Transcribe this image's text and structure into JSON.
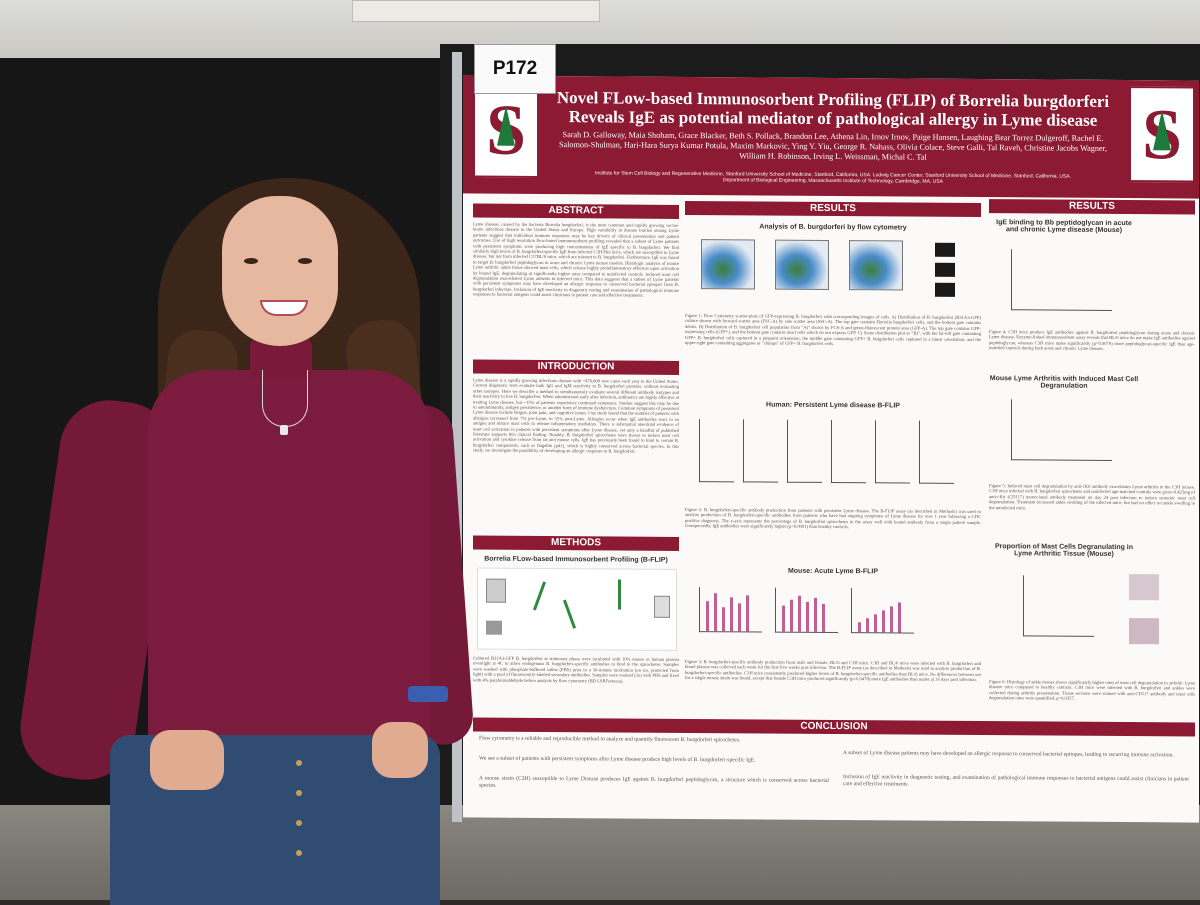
{
  "board_tag": "P172",
  "poster": {
    "title_line1": "Novel FLow-based Immunosorbent Profiling (FLIP) of Borrelia burgdorferi",
    "title_line2": "Reveals IgE as potential mediator of pathological allergy in Lyme disease",
    "authors": "Sarah D. Galloway, Maia Shoham, Grace Blacker, Beth S. Pollack, Brandon Lee, Athena Lin, Irnov Irnov, Paige Hansen, Laughing Bear Torrez Dulgeroff, Rachel E. Salomon-Shulman, Hari-Hara Surya Kumar Potula, Maxim Markovic, Ying Y. Yiu, George R. Nahass, Olivia Colace, Steve Galli, Tal Raveh, Christine Jacobs Wagner, William H. Robinson, Irving L. Weissman, Michal C. Tal",
    "affiliations": "Institute for Stem Cell Biology and Regenerative Medicine, Stanford University School of Medicine, Stanford, California, USA. Ludwig Cancer Center, Stanford University School of Medicine, Stanford, California, USA. Department of Biological Engineering, Massachusetts Institute of Technology, Cambridge, MA, USA",
    "sections": {
      "abstract": "ABSTRACT",
      "introduction": "INTRODUCTION",
      "methods": "METHODS",
      "results_mid": "RESULTS",
      "results_right": "RESULTS",
      "conclusion": "CONCLUSION"
    },
    "figures": {
      "flow": "Analysis of B. burgdorferi by flow cytometry",
      "human": "Human: Persistent Lyme disease B-FLIP",
      "mouse": "Mouse: Acute Lyme B-FLIP",
      "ige": "IgE binding to Bb peptidoglycan in acute and chronic Lyme disease (Mouse)",
      "arthritis": "Mouse Lyme Arthritis with Induced Mast Cell Degranulation",
      "mast": "Proportion of Mast Cells Degranulating in Lyme Arthritic Tissue (Mouse)",
      "methods": "Borrelia FLow-based Immunosorbent Profiling (B-FLIP)"
    },
    "conclusion_points": [
      "Flow cytometry is a reliable and reproducible method to analyze and quantify fluorescent B. burgdorferi spirochetes.",
      "We see a subset of patients with persistent symptoms after Lyme disease produce high levels of B. burgdorferi-specific IgE.",
      "A mouse strain (C3H) susceptible to Lyme Disease produces IgE against B. burgdorferi peptidoglycan, a structure which is conserved across bacterial species.",
      "A subset of Lyme disease patients may have developed an allergic response to conserved bacterial epitopes, leading to recurring immune activation.",
      "Inclusion of IgE reactivity in diagnostic testing, and examination of pathological immune responses to bacterial antigens could assist clinicians in patient care and effective treatments."
    ]
  }
}
